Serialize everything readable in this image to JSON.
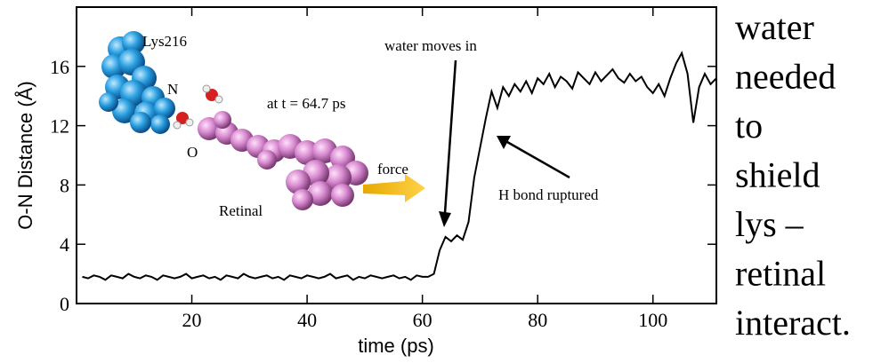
{
  "chart_data": {
    "type": "line",
    "xlabel": "time (ps)",
    "ylabel": "O-N Distance (Å)",
    "xlim": [
      0,
      111
    ],
    "ylim": [
      0,
      20
    ],
    "xticks": [
      20,
      40,
      60,
      80,
      100
    ],
    "yticks": [
      0,
      4,
      8,
      12,
      16
    ],
    "series": [
      {
        "color": "#000000",
        "x": [
          1,
          2,
          3,
          4,
          5,
          6,
          7,
          8,
          9,
          10,
          11,
          12,
          13,
          14,
          15,
          16,
          17,
          18,
          19,
          20,
          21,
          22,
          23,
          24,
          25,
          26,
          27,
          28,
          29,
          30,
          31,
          32,
          33,
          34,
          35,
          36,
          37,
          38,
          39,
          40,
          41,
          42,
          43,
          44,
          45,
          46,
          47,
          48,
          49,
          50,
          51,
          52,
          53,
          54,
          55,
          56,
          57,
          58,
          59,
          60,
          61,
          62,
          63,
          64,
          65,
          66,
          67,
          68,
          69,
          70,
          71,
          72,
          73,
          74,
          75,
          76,
          77,
          78,
          79,
          80,
          81,
          82,
          83,
          84,
          85,
          86,
          87,
          88,
          89,
          90,
          91,
          92,
          93,
          94,
          95,
          96,
          97,
          98,
          99,
          100,
          101,
          102,
          103,
          104,
          105,
          106,
          107,
          108,
          109,
          110,
          111
        ],
        "values": [
          1.8,
          1.7,
          1.9,
          1.8,
          1.6,
          1.9,
          1.8,
          1.7,
          2.0,
          1.8,
          1.7,
          1.9,
          1.8,
          1.6,
          1.9,
          1.8,
          1.7,
          1.8,
          2.0,
          1.7,
          1.8,
          1.9,
          1.7,
          1.8,
          1.6,
          1.9,
          1.8,
          1.7,
          2.0,
          1.8,
          1.7,
          1.8,
          1.9,
          1.7,
          1.8,
          1.6,
          1.9,
          1.8,
          1.7,
          1.9,
          1.8,
          1.7,
          1.8,
          2.0,
          1.7,
          1.8,
          1.9,
          1.6,
          1.8,
          1.7,
          1.9,
          1.8,
          1.7,
          1.8,
          1.9,
          1.7,
          1.8,
          1.6,
          1.9,
          1.8,
          1.8,
          2.0,
          3.6,
          4.5,
          4.2,
          4.6,
          4.3,
          5.5,
          8.5,
          10.5,
          12.5,
          14.3,
          13.2,
          14.6,
          14.0,
          14.8,
          14.3,
          15.0,
          14.2,
          15.2,
          14.8,
          15.5,
          14.6,
          15.3,
          15.0,
          14.5,
          15.6,
          15.2,
          14.8,
          15.6,
          15.0,
          15.4,
          15.8,
          15.2,
          14.9,
          15.5,
          15.0,
          15.3,
          14.6,
          14.2,
          14.8,
          14.0,
          15.2,
          16.2,
          16.9,
          15.5,
          12.2,
          14.6,
          15.5,
          14.8,
          15.2
        ]
      }
    ],
    "annotations": [
      "Lys216",
      "N",
      "O",
      "at t = 64.7 ps",
      "Retinal",
      "force",
      "water moves in",
      "H bond ruptured"
    ]
  },
  "side_text": [
    "water",
    "needed",
    "to",
    "shield",
    "lys –",
    "retinal",
    "interact."
  ]
}
